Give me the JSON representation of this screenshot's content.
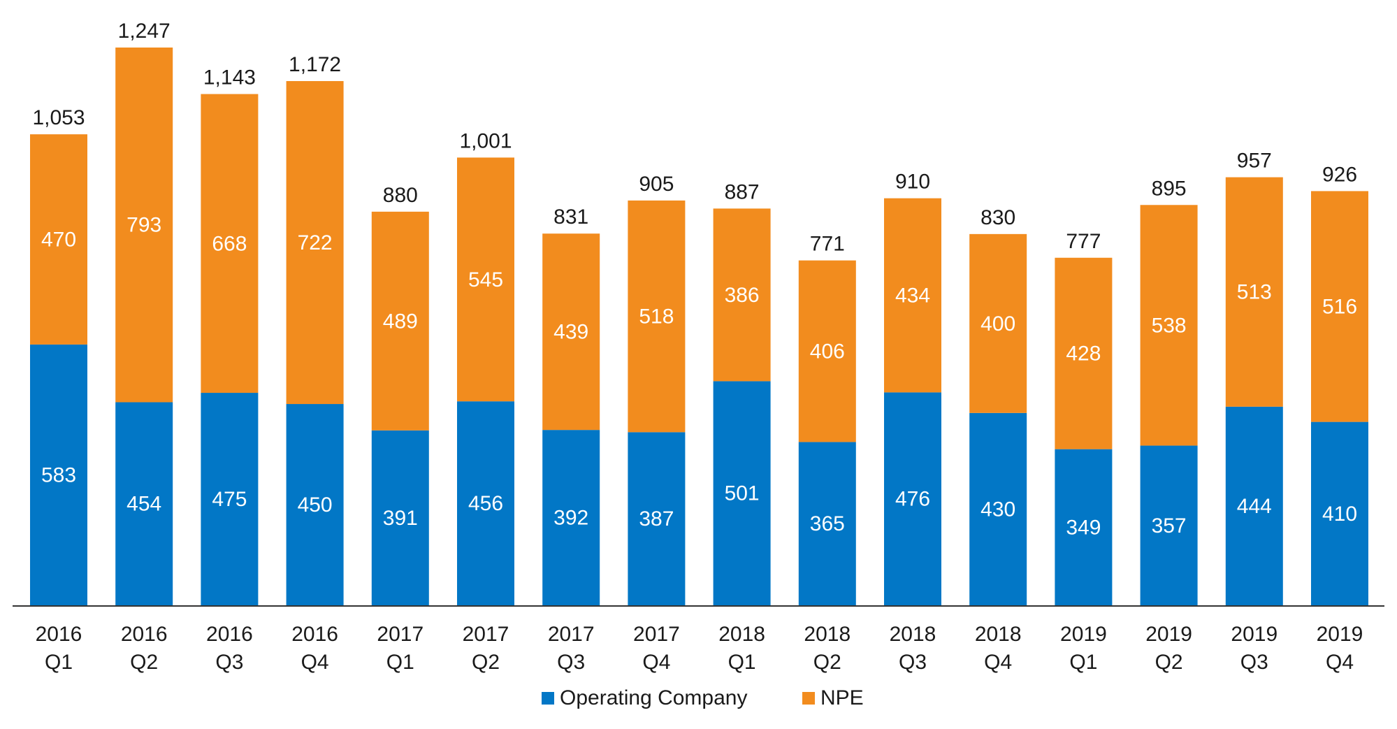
{
  "chart_data": {
    "type": "bar",
    "stacked": true,
    "categories": [
      [
        "2016",
        "Q1"
      ],
      [
        "2016",
        "Q2"
      ],
      [
        "2016",
        "Q3"
      ],
      [
        "2016",
        "Q4"
      ],
      [
        "2017",
        "Q1"
      ],
      [
        "2017",
        "Q2"
      ],
      [
        "2017",
        "Q3"
      ],
      [
        "2017",
        "Q4"
      ],
      [
        "2018",
        "Q1"
      ],
      [
        "2018",
        "Q2"
      ],
      [
        "2018",
        "Q3"
      ],
      [
        "2018",
        "Q4"
      ],
      [
        "2019",
        "Q1"
      ],
      [
        "2019",
        "Q2"
      ],
      [
        "2019",
        "Q3"
      ],
      [
        "2019",
        "Q4"
      ]
    ],
    "series": [
      {
        "name": "Operating Company",
        "color": "#0277c6",
        "values": [
          583,
          454,
          475,
          450,
          391,
          456,
          392,
          387,
          501,
          365,
          476,
          430,
          349,
          357,
          444,
          410
        ],
        "labels": [
          "583",
          "454",
          "475",
          "450",
          "391",
          "456",
          "392",
          "387",
          "501",
          "365",
          "476",
          "430",
          "349",
          "357",
          "444",
          "410"
        ]
      },
      {
        "name": "NPE",
        "color": "#f28c1e",
        "values": [
          470,
          793,
          668,
          722,
          489,
          545,
          439,
          518,
          386,
          406,
          434,
          400,
          428,
          538,
          513,
          516
        ],
        "labels": [
          "470",
          "793",
          "668",
          "722",
          "489",
          "545",
          "439",
          "518",
          "386",
          "406",
          "434",
          "400",
          "428",
          "538",
          "513",
          "516"
        ]
      }
    ],
    "totals": [
      1053,
      1247,
      1143,
      1172,
      880,
      1001,
      831,
      905,
      887,
      771,
      910,
      830,
      777,
      895,
      957,
      926
    ],
    "total_labels": [
      "1,053",
      "1,247",
      "1,143",
      "1,172",
      "880",
      "1,001",
      "831",
      "905",
      "887",
      "771",
      "910",
      "830",
      "777",
      "895",
      "957",
      "926"
    ],
    "ylim": [
      0,
      1247
    ],
    "grid": false,
    "legend": {
      "position": "bottom-center"
    },
    "title": "",
    "xlabel": "",
    "ylabel": ""
  }
}
